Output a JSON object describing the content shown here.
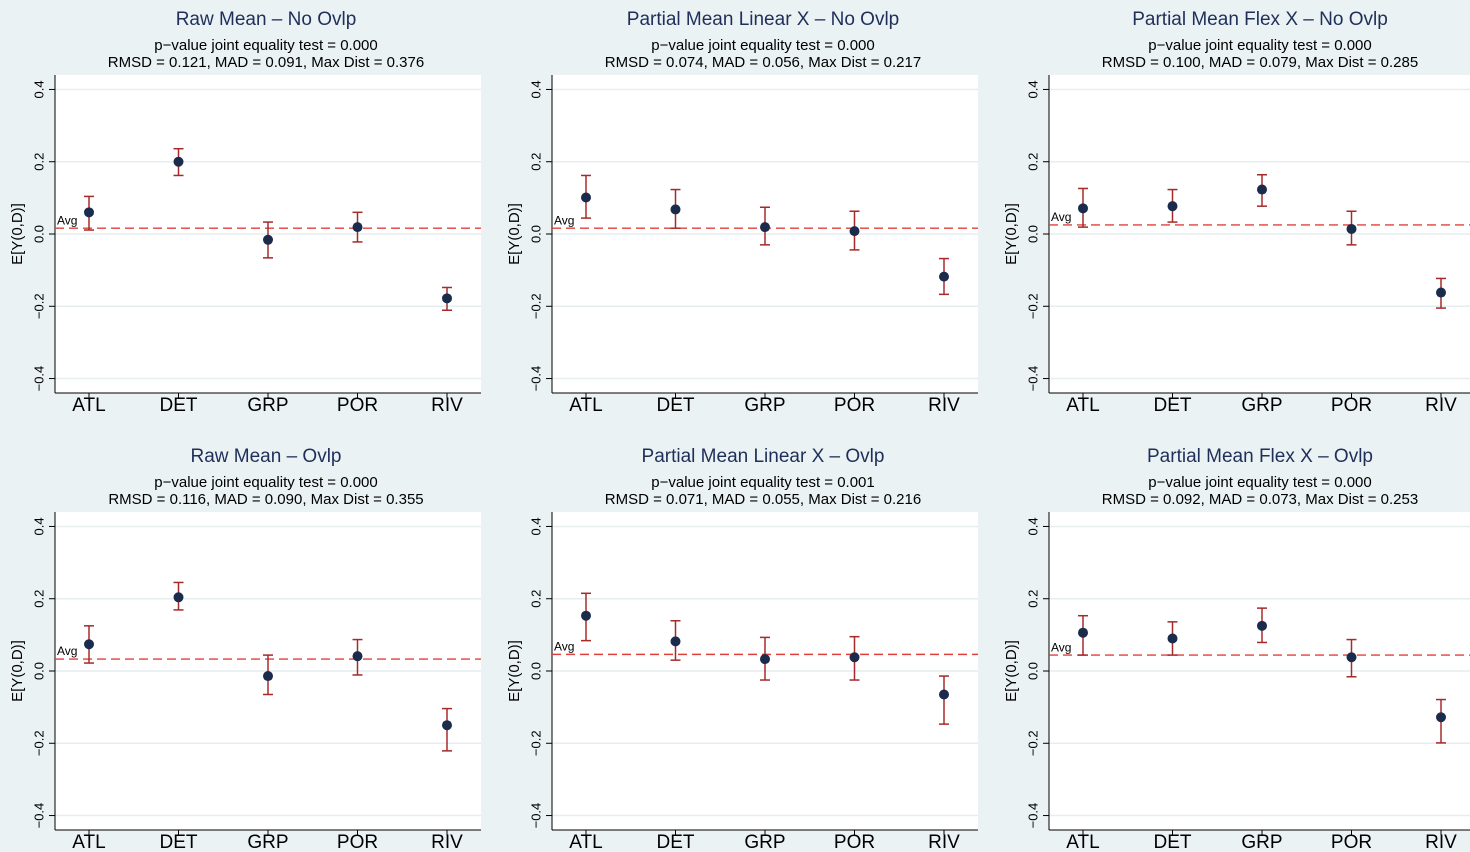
{
  "chart_data": [
    {
      "type": "errorbar",
      "title": "Raw Mean – No Ovlp",
      "subtitle": [
        "p−value joint equality test = 0.000",
        "RMSD = 0.121, MAD = 0.091, Max Dist = 0.376"
      ],
      "y_label": "E[Y(0,D)]",
      "categories": [
        "ATL",
        "DET",
        "GRP",
        "POR",
        "RIV"
      ],
      "values": [
        0.06,
        0.2,
        -0.016,
        0.019,
        -0.178
      ],
      "lower": [
        0.011,
        0.162,
        -0.066,
        -0.022,
        -0.211
      ],
      "upper": [
        0.104,
        0.236,
        0.033,
        0.06,
        -0.148
      ],
      "avg_line": {
        "label": "Avg",
        "value": 0.016
      },
      "ylim": [
        -0.44,
        0.44
      ],
      "yticks": [
        {
          "value": -0.4,
          "label": "−0.4"
        },
        {
          "value": -0.2,
          "label": "−0.2"
        },
        {
          "value": 0,
          "label": "0.0"
        },
        0.2,
        0.4
      ],
      "grid": true,
      "color": "#1a2b4c",
      "error_color": "#a52a2a",
      "avg_color": "#e0403a"
    },
    {
      "type": "errorbar",
      "title": "Partial Mean Linear X – No Ovlp",
      "subtitle": [
        "p−value joint equality test = 0.000",
        "RMSD = 0.074, MAD = 0.056, Max Dist = 0.217"
      ],
      "y_label": "E[Y(0,D)]",
      "categories": [
        "ATL",
        "DET",
        "GRP",
        "POR",
        "RIV"
      ],
      "values": [
        0.101,
        0.068,
        0.019,
        0.008,
        -0.118
      ],
      "lower": [
        0.044,
        0.016,
        -0.03,
        -0.044,
        -0.167
      ],
      "upper": [
        0.162,
        0.123,
        0.074,
        0.063,
        -0.068
      ],
      "avg_line": {
        "label": "Avg",
        "value": 0.016
      },
      "ylim": [
        -0.44,
        0.44
      ],
      "yticks": [
        {
          "value": -0.4,
          "label": "−0.4"
        },
        {
          "value": -0.2,
          "label": "−0.2"
        },
        {
          "value": 0,
          "label": "0.0"
        },
        0.2,
        0.4
      ],
      "grid": true,
      "color": "#1a2b4c",
      "error_color": "#a52a2a",
      "avg_color": "#e0403a"
    },
    {
      "type": "errorbar",
      "title": "Partial Mean Flex X – No Ovlp",
      "subtitle": [
        "p−value joint equality test = 0.000",
        "RMSD = 0.100, MAD = 0.079, Max Dist = 0.285"
      ],
      "y_label": "E[Y(0,D)]",
      "categories": [
        "ATL",
        "DET",
        "GRP",
        "POR",
        "RIV"
      ],
      "values": [
        0.071,
        0.077,
        0.123,
        0.014,
        -0.162
      ],
      "lower": [
        0.019,
        0.033,
        0.077,
        -0.03,
        -0.205
      ],
      "upper": [
        0.126,
        0.123,
        0.164,
        0.063,
        -0.123
      ],
      "avg_line": {
        "label": "Avg",
        "value": 0.025
      },
      "ylim": [
        -0.44,
        0.44
      ],
      "yticks": [
        {
          "value": -0.4,
          "label": "−0.4"
        },
        {
          "value": -0.2,
          "label": "−0.2"
        },
        {
          "value": 0,
          "label": "0.0"
        },
        0.2,
        0.4
      ],
      "grid": true,
      "color": "#1a2b4c",
      "error_color": "#a52a2a",
      "avg_color": "#e0403a"
    },
    {
      "type": "errorbar",
      "title": "Raw Mean – Ovlp",
      "subtitle": [
        "p−value joint equality test = 0.000",
        "RMSD = 0.116, MAD = 0.090, Max Dist = 0.355"
      ],
      "y_label": "E[Y(0,D)]",
      "categories": [
        "ATL",
        "DET",
        "GRP",
        "POR",
        "RIV"
      ],
      "values": [
        0.074,
        0.204,
        -0.014,
        0.041,
        -0.15
      ],
      "lower": [
        0.022,
        0.169,
        -0.065,
        -0.011,
        -0.221
      ],
      "upper": [
        0.125,
        0.245,
        0.044,
        0.087,
        -0.104
      ],
      "avg_line": {
        "label": "Avg",
        "value": 0.033
      },
      "ylim": [
        -0.44,
        0.44
      ],
      "yticks": [
        {
          "value": -0.4,
          "label": "−0.4"
        },
        {
          "value": -0.2,
          "label": "−0.2"
        },
        {
          "value": 0,
          "label": "0.0"
        },
        0.2,
        0.4
      ],
      "grid": true,
      "color": "#1a2b4c",
      "error_color": "#a52a2a",
      "avg_color": "#e0403a"
    },
    {
      "type": "errorbar",
      "title": "Partial Mean Linear X – Ovlp",
      "subtitle": [
        "p−value joint equality test = 0.001",
        "RMSD = 0.071, MAD = 0.055, Max Dist = 0.216"
      ],
      "y_label": "E[Y(0,D)]",
      "categories": [
        "ATL",
        "DET",
        "GRP",
        "POR",
        "RIV"
      ],
      "values": [
        0.153,
        0.082,
        0.033,
        0.038,
        -0.065
      ],
      "lower": [
        0.084,
        0.03,
        -0.025,
        -0.025,
        -0.147
      ],
      "upper": [
        0.215,
        0.139,
        0.093,
        0.095,
        -0.014
      ],
      "avg_line": {
        "label": "Avg",
        "value": 0.046
      },
      "ylim": [
        -0.44,
        0.44
      ],
      "yticks": [
        {
          "value": -0.4,
          "label": "−0.4"
        },
        {
          "value": -0.2,
          "label": "−0.2"
        },
        {
          "value": 0,
          "label": "0.0"
        },
        0.2,
        0.4
      ],
      "grid": true,
      "color": "#1a2b4c",
      "error_color": "#a52a2a",
      "avg_color": "#e0403a"
    },
    {
      "type": "errorbar",
      "title": "Partial Mean Flex X – Ovlp",
      "subtitle": [
        "p−value joint equality test = 0.000",
        "RMSD = 0.092, MAD = 0.073, Max Dist = 0.253"
      ],
      "y_label": "E[Y(0,D)]",
      "categories": [
        "ATL",
        "DET",
        "GRP",
        "POR",
        "RIV"
      ],
      "values": [
        0.106,
        0.09,
        0.125,
        0.038,
        -0.128
      ],
      "lower": [
        0.044,
        0.044,
        0.079,
        -0.016,
        -0.199
      ],
      "upper": [
        0.153,
        0.136,
        0.174,
        0.087,
        -0.079
      ],
      "avg_line": {
        "label": "Avg",
        "value": 0.044
      },
      "ylim": [
        -0.44,
        0.44
      ],
      "yticks": [
        {
          "value": -0.4,
          "label": "−0.4"
        },
        {
          "value": -0.2,
          "label": "−0.2"
        },
        {
          "value": 0,
          "label": "0.0"
        },
        0.2,
        0.4
      ],
      "grid": true,
      "color": "#1a2b4c",
      "error_color": "#a52a2a",
      "avg_color": "#e0403a"
    }
  ]
}
